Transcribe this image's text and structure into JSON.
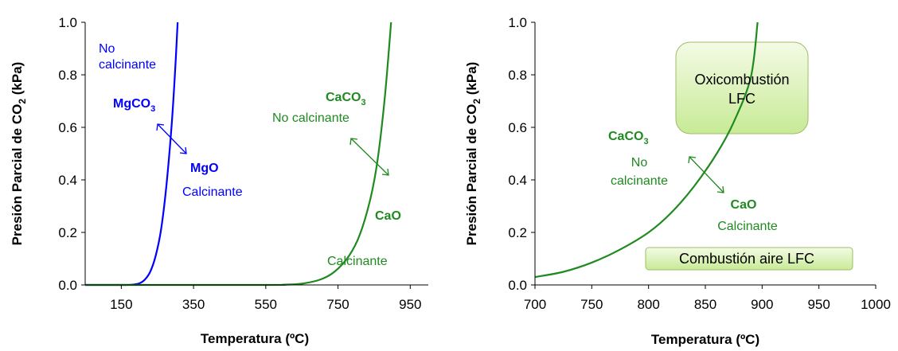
{
  "colors": {
    "mg_curve": "#0000ff",
    "ca_curve": "#1f8a1f",
    "box_fill_top": "#f4fbe6",
    "box_fill_bottom": "#c8ea96",
    "box_stroke": "#9ebd6a"
  },
  "chart_data": [
    {
      "type": "line",
      "title": "",
      "xlabel": "Temperatura (ºC)",
      "ylabel_main": "Presión Parcial de CO",
      "ylabel_sub": "2",
      "ylabel_unit": " (kPa)",
      "xlim": [
        50,
        1000
      ],
      "ylim": [
        0,
        1.0
      ],
      "xticks": [
        "150",
        "350",
        "550",
        "750",
        "950"
      ],
      "xtick_values": [
        150,
        350,
        550,
        750,
        950
      ],
      "yticks": [
        "0.0",
        "0.2",
        "0.4",
        "0.6",
        "0.8",
        "1.0"
      ],
      "ytick_values": [
        0,
        0.2,
        0.4,
        0.6,
        0.8,
        1.0
      ],
      "grid": false,
      "series": [
        {
          "color": "#0000ff",
          "x": [
            50,
            150,
            180,
            200,
            215,
            230,
            245,
            260,
            275,
            290,
            300,
            306
          ],
          "y": [
            0,
            0,
            0.001,
            0.006,
            0.02,
            0.05,
            0.11,
            0.21,
            0.38,
            0.62,
            0.84,
            1.0
          ]
        },
        {
          "color": "#1f8a1f",
          "x": [
            50,
            550,
            600,
            650,
            700,
            740,
            780,
            810,
            840,
            860,
            880,
            897
          ],
          "y": [
            0,
            0,
            0.001,
            0.005,
            0.02,
            0.05,
            0.11,
            0.19,
            0.33,
            0.48,
            0.72,
            1.0
          ]
        }
      ],
      "annotations": {
        "mg_no_calc_line1": "No",
        "mg_no_calc_line2": "calcinante",
        "mgco3_main": "MgCO",
        "mgco3_sub": "3",
        "mgo": "MgO",
        "mgo_calc": "Calcinante",
        "caco3_main": "CaCO",
        "caco3_sub": "3",
        "caco3_no_calc": "No calcinante",
        "cao": "CaO",
        "cao_calc": "Calcinante"
      }
    },
    {
      "type": "line",
      "title": "",
      "xlabel": "Temperatura (ºC)",
      "ylabel_main": "Presión Parcial de CO",
      "ylabel_sub": "2",
      "ylabel_unit": " (kPa)",
      "xlim": [
        700,
        1000
      ],
      "ylim": [
        0,
        1.0
      ],
      "xticks": [
        "700",
        "750",
        "800",
        "850",
        "900",
        "950",
        "1000"
      ],
      "xtick_values": [
        700,
        750,
        800,
        850,
        900,
        950,
        1000
      ],
      "yticks": [
        "0.0",
        "0.2",
        "0.4",
        "0.6",
        "0.8",
        "1.0"
      ],
      "ytick_values": [
        0,
        0.2,
        0.4,
        0.6,
        0.8,
        1.0
      ],
      "grid": false,
      "series": [
        {
          "color": "#1f8a1f",
          "x": [
            700,
            725,
            750,
            775,
            800,
            820,
            840,
            860,
            875,
            890,
            896
          ],
          "y": [
            0.03,
            0.05,
            0.085,
            0.135,
            0.2,
            0.275,
            0.375,
            0.5,
            0.62,
            0.79,
            1.0
          ]
        }
      ],
      "annotations": {
        "caco3_main": "CaCO",
        "caco3_sub": "3",
        "no_line1": "No",
        "no_line2": "calcinante",
        "cao": "CaO",
        "cao_calc": "Calcinante",
        "box_oxi_line1": "Oxicombustión",
        "box_oxi_line2": "LFC",
        "box_aire": "Combustión aire LFC"
      }
    }
  ]
}
